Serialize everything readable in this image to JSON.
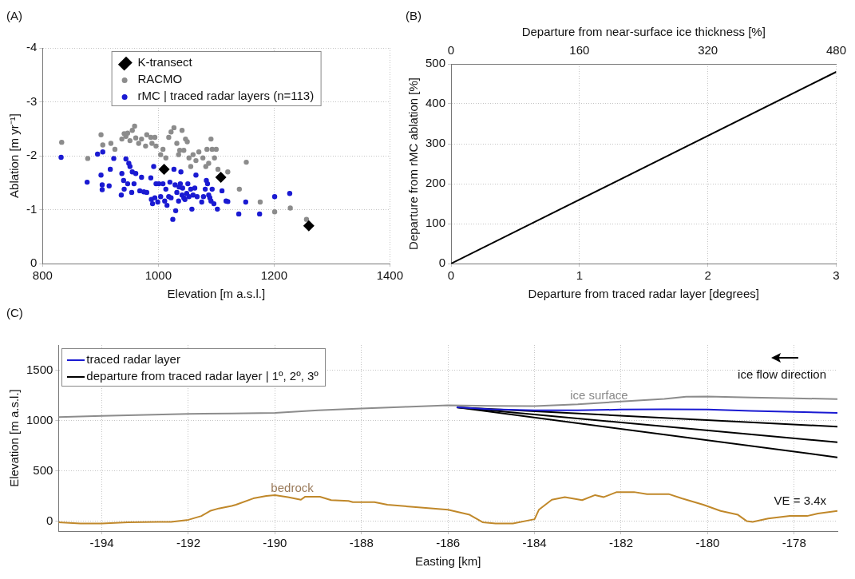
{
  "chart_data": [
    {
      "type": "scatter",
      "title": "(A)",
      "xlabel": "Elevation [m a.s.l.]",
      "ylabel": "Ablation [m yr⁻¹]",
      "xlim": [
        800,
        1400
      ],
      "xticks": [
        800,
        1000,
        1200,
        1400
      ],
      "ylim": [
        0,
        -4
      ],
      "yticks": [
        0,
        -1,
        -2,
        -3,
        -4
      ],
      "grid": true,
      "legend": "top",
      "series": [
        {
          "name": "K-transect",
          "color": "#000000",
          "marker": "diamond",
          "x": [
            1010,
            1108,
            1260
          ],
          "values": [
            -1.75,
            -1.6,
            -0.7
          ]
        },
        {
          "name": "RACMO",
          "color": "#8c8c8c",
          "marker": "circle",
          "x": [
            833,
            878,
            901,
            904,
            918,
            925,
            937,
            941,
            944,
            947,
            951,
            955,
            959,
            961,
            966,
            971,
            978,
            980,
            987,
            989,
            994,
            996,
            1004,
            1008,
            1013,
            1018,
            1022,
            1027,
            1032,
            1035,
            1037,
            1041,
            1044,
            1047,
            1050,
            1053,
            1056,
            1060,
            1065,
            1070,
            1077,
            1082,
            1084,
            1087,
            1091,
            1093,
            1097,
            1100,
            1103,
            1120,
            1140,
            1152,
            1176,
            1201,
            1228,
            1256
          ],
          "values": [
            -2.25,
            -1.95,
            -2.39,
            -2.2,
            -2.23,
            -2.12,
            -2.31,
            -2.41,
            -2.36,
            -2.42,
            -2.28,
            -2.47,
            -2.55,
            -2.33,
            -2.23,
            -2.31,
            -2.18,
            -2.39,
            -2.34,
            -2.23,
            -2.34,
            -2.18,
            -2.02,
            -2.12,
            -1.96,
            -2.34,
            -2.44,
            -2.52,
            -2.23,
            -2.02,
            -2.1,
            -2.47,
            -2.1,
            -2.31,
            -2.26,
            -1.96,
            -1.8,
            -2.02,
            -1.91,
            -2.07,
            -1.96,
            -1.8,
            -2.12,
            -1.86,
            -2.31,
            -2.12,
            -1.96,
            -2.12,
            -1.75,
            -1.7,
            -1.38,
            -1.88,
            -1.14,
            -0.96,
            -1.03,
            -0.82
          ]
        },
        {
          "name": "rMC | traced radar layers (n=113)",
          "color": "#1a1ad2",
          "marker": "circle",
          "x": [
            832,
            877,
            895,
            901,
            903,
            903,
            904,
            915,
            917,
            923,
            936,
            937,
            940,
            941,
            944,
            947,
            949,
            951,
            954,
            955,
            958,
            961,
            968,
            971,
            975,
            980,
            987,
            988,
            990,
            992,
            994,
            996,
            999,
            1001,
            1004,
            1008,
            1011,
            1013,
            1015,
            1018,
            1020,
            1022,
            1025,
            1027,
            1029,
            1030,
            1032,
            1035,
            1036,
            1038,
            1039,
            1041,
            1042,
            1044,
            1046,
            1049,
            1051,
            1053,
            1056,
            1058,
            1060,
            1063,
            1065,
            1067,
            1075,
            1078,
            1081,
            1083,
            1085,
            1087,
            1089,
            1091,
            1093,
            1096,
            1102,
            1110,
            1117,
            1120,
            1139,
            1151,
            1175,
            1201,
            1227
          ],
          "values": [
            -1.97,
            -1.51,
            -2.03,
            -1.64,
            -1.46,
            -1.37,
            -2.07,
            -1.44,
            -1.75,
            -1.95,
            -1.27,
            -1.67,
            -1.54,
            -1.38,
            -1.94,
            -1.48,
            -1.86,
            -1.8,
            -1.32,
            -1.7,
            -1.48,
            -1.67,
            -1.35,
            -1.6,
            -1.33,
            -1.32,
            -1.59,
            -1.19,
            -1.11,
            -1.8,
            -1.22,
            -1.48,
            -1.14,
            -1.48,
            -1.24,
            -1.48,
            -1.16,
            -1.38,
            -1.08,
            -1.24,
            -1.51,
            -1.22,
            -0.82,
            -1.75,
            -1.46,
            -0.98,
            -1.32,
            -1.16,
            -1.42,
            -1.48,
            -1.7,
            -1.27,
            -1.4,
            -1.22,
            -1.19,
            -1.3,
            -1.48,
            -1.24,
            -1.38,
            -1.01,
            -1.27,
            -1.4,
            -1.64,
            -1.24,
            -1.14,
            -1.24,
            -1.38,
            -1.54,
            -1.48,
            -1.27,
            -1.22,
            -1.16,
            -1.38,
            -1.11,
            -1.01,
            -1.35,
            -1.16,
            -1.15,
            -0.92,
            -1.14,
            -0.92,
            -1.24,
            -1.3
          ]
        }
      ]
    },
    {
      "type": "line",
      "title": "(B)",
      "xlabel": "Departure from traced radar layer [degrees]",
      "x2label": "Departure from near-surface ice thickness [%]",
      "ylabel": "Departure from rMC ablation [%]",
      "xlim": [
        0,
        3
      ],
      "xticks": [
        0,
        1,
        2,
        3
      ],
      "x2lim": [
        0,
        480
      ],
      "x2ticks": [
        0,
        160,
        320,
        480
      ],
      "ylim": [
        0,
        500
      ],
      "yticks": [
        0,
        100,
        200,
        300,
        400,
        500
      ],
      "grid": true,
      "series": [
        {
          "color": "#000000",
          "x": [
            0,
            3
          ],
          "values": [
            0,
            480
          ]
        }
      ]
    },
    {
      "type": "line",
      "title": "(C)",
      "xlabel": "Easting [km]",
      "ylabel": "Elevation [m a.s.l.]",
      "xlim": [
        -195,
        -177
      ],
      "xticks": [
        -194,
        -192,
        -190,
        -188,
        -186,
        -184,
        -182,
        -180,
        -178
      ],
      "ylim": [
        -100,
        1750
      ],
      "yticks": [
        0,
        500,
        1000,
        1500
      ],
      "grid": true,
      "legend": "top left",
      "annotations": [
        "ice surface",
        "bedrock",
        "ice flow direction",
        "VE = 3.4x"
      ],
      "series": [
        {
          "color": "#8c8c8c",
          "x": [
            -195,
            -194,
            -193,
            -192,
            -191,
            -190,
            -189,
            -188,
            -187,
            -186,
            -185,
            -184,
            -183,
            -182,
            -181,
            -180.5,
            -180,
            -179,
            -178,
            -177
          ],
          "values": [
            1033,
            1045,
            1055,
            1065,
            1070,
            1075,
            1100,
            1118,
            1135,
            1150,
            1145,
            1143,
            1160,
            1188,
            1215,
            1235,
            1238,
            1228,
            1220,
            1213
          ]
        },
        {
          "name": "traced radar layer",
          "color": "#1a1ad2",
          "x": [
            -185.8,
            -185,
            -184,
            -183,
            -182,
            -181,
            -180,
            -179,
            -178,
            -177
          ],
          "values": [
            1130,
            1110,
            1100,
            1100,
            1108,
            1110,
            1108,
            1095,
            1085,
            1075
          ]
        },
        {
          "name": "departure from traced radar layer | 1º, 2º, 3º",
          "color": "#000000",
          "x": [
            -185.8,
            -177
          ],
          "values": [
            1130,
            938
          ]
        },
        {
          "color": "#000000",
          "x": [
            -185.8,
            -177
          ],
          "values": [
            1130,
            783
          ]
        },
        {
          "color": "#000000",
          "x": [
            -185.8,
            -177
          ],
          "values": [
            1130,
            633
          ]
        },
        {
          "color": "#c0882a",
          "x": [
            -195,
            -194.5,
            -194,
            -193.4,
            -192.7,
            -192.4,
            -192,
            -191.7,
            -191.5,
            -191.3,
            -191,
            -190.9,
            -190.5,
            -190.2,
            -190,
            -189.7,
            -189.4,
            -189.3,
            -188.96,
            -188.7,
            -188.3,
            -188.2,
            -187.7,
            -187.4,
            -186.8,
            -186,
            -185.5,
            -185.2,
            -184.9,
            -184.5,
            -184,
            -183.9,
            -183.6,
            -183.3,
            -182.9,
            -182.6,
            -182.4,
            -182.1,
            -181.7,
            -181.4,
            -180.9,
            -180.6,
            -180.1,
            -179.7,
            -179.3,
            -179.1,
            -178.96,
            -178.6,
            -178.1,
            -177.7,
            -177.45,
            -177
          ],
          "values": [
            -12,
            -25,
            -25,
            -12,
            -8,
            -8,
            12,
            50,
            100,
            125,
            150,
            162,
            225,
            250,
            258,
            238,
            212,
            242,
            242,
            208,
            200,
            188,
            188,
            162,
            140,
            112,
            62,
            -12,
            -25,
            -25,
            18,
            112,
            212,
            238,
            208,
            258,
            238,
            288,
            288,
            268,
            268,
            225,
            162,
            100,
            62,
            0,
            -8,
            25,
            50,
            50,
            75,
            100
          ]
        }
      ]
    }
  ]
}
